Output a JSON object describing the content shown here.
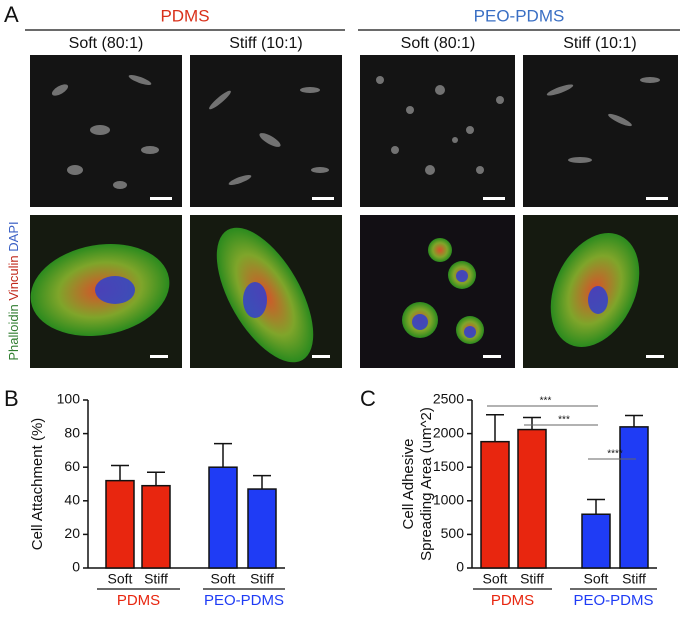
{
  "panel_a": {
    "label": "A",
    "groups": [
      {
        "name": "PDMS",
        "color": "#d9301a",
        "columns": [
          "Soft (80:1)",
          "Stiff (10:1)"
        ]
      },
      {
        "name": "PEO-PDMS",
        "color": "#3a6fc4",
        "columns": [
          "Soft (80:1)",
          "Stiff (10:1)"
        ]
      }
    ],
    "stain_label": [
      {
        "text": "Phalloidin",
        "color": "#2f7d2f"
      },
      {
        "text": "Vinculin",
        "color": "#c0281a"
      },
      {
        "text": "DAPI",
        "color": "#3a5fc4"
      }
    ]
  },
  "chart_data": [
    {
      "type": "bar",
      "label": "B",
      "ylabel": [
        "Cell Attachment (%)"
      ],
      "categories": [
        "Soft",
        "Stiff"
      ],
      "ylim": [
        0,
        100
      ],
      "yticks": [
        0,
        20,
        40,
        60,
        80,
        100
      ],
      "series": [
        {
          "name": "PDMS",
          "color": "#e8260f",
          "values": [
            52,
            49
          ],
          "errors": [
            9,
            8
          ]
        },
        {
          "name": "PEO-PDMS",
          "color": "#1f3cf5",
          "values": [
            60,
            47
          ],
          "errors": [
            14,
            8
          ]
        }
      ]
    },
    {
      "type": "bar",
      "label": "C",
      "ylabel": [
        "Cell Adhesive",
        "Spreading Area (um^2)"
      ],
      "categories": [
        "Soft",
        "Stiff"
      ],
      "ylim": [
        0,
        2500
      ],
      "yticks": [
        0,
        500,
        1000,
        1500,
        2000,
        2500
      ],
      "series": [
        {
          "name": "PDMS",
          "color": "#e8260f",
          "values": [
            1880,
            2060
          ],
          "errors": [
            400,
            180
          ]
        },
        {
          "name": "PEO-PDMS",
          "color": "#1f3cf5",
          "values": [
            800,
            2100
          ],
          "errors": [
            220,
            170
          ]
        }
      ],
      "annotations": [
        {
          "text": "***",
          "from": 0,
          "to": 2
        },
        {
          "text": "***",
          "from": 1,
          "to": 2
        },
        {
          "text": "****",
          "from": 2,
          "to": 3
        }
      ]
    }
  ]
}
